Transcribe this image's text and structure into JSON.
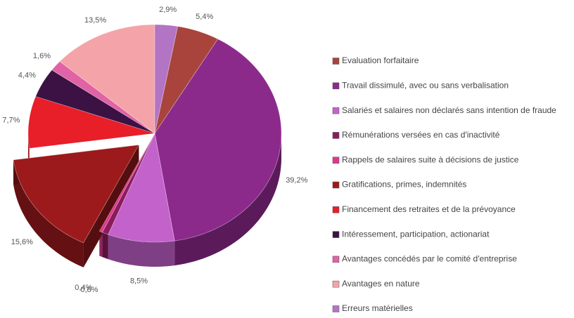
{
  "chart_data": {
    "type": "pie",
    "categories": [
      "Evaluation forfaitaire",
      "Travail dissimulé, avec ou sans verbalisation",
      "Salariés et salaires non déclarés sans intention de fraude",
      "Rémunérations versées en cas d'inactivité",
      "Rappels de salaires suite à décisions de justice",
      "Gratifications, primes, indemnités",
      "Financement des retraites et de la prévoyance",
      "Intéressement, participation, actionariat",
      "Avantages concédés par le comité d'entreprise",
      "Avantages en nature",
      "Erreurs matérielles"
    ],
    "values": [
      5.4,
      39.2,
      8.5,
      0.8,
      0.4,
      15.6,
      7.7,
      4.4,
      1.6,
      13.5,
      2.9
    ],
    "value_labels": [
      "5,4%",
      "39,2%",
      "8,5%",
      "0,8%",
      "0,4%",
      "15,6%",
      "7,7%",
      "4,4%",
      "1,6%",
      "13,5%",
      "2,9%"
    ],
    "colors": [
      "#a8443c",
      "#8c2a8c",
      "#c462cc",
      "#8a1c5e",
      "#e2368e",
      "#9c1a1c",
      "#e81e28",
      "#3c1244",
      "#e262a6",
      "#f4a4a8",
      "#b474c4"
    ],
    "exploded": [
      5
    ],
    "legend": "right"
  }
}
